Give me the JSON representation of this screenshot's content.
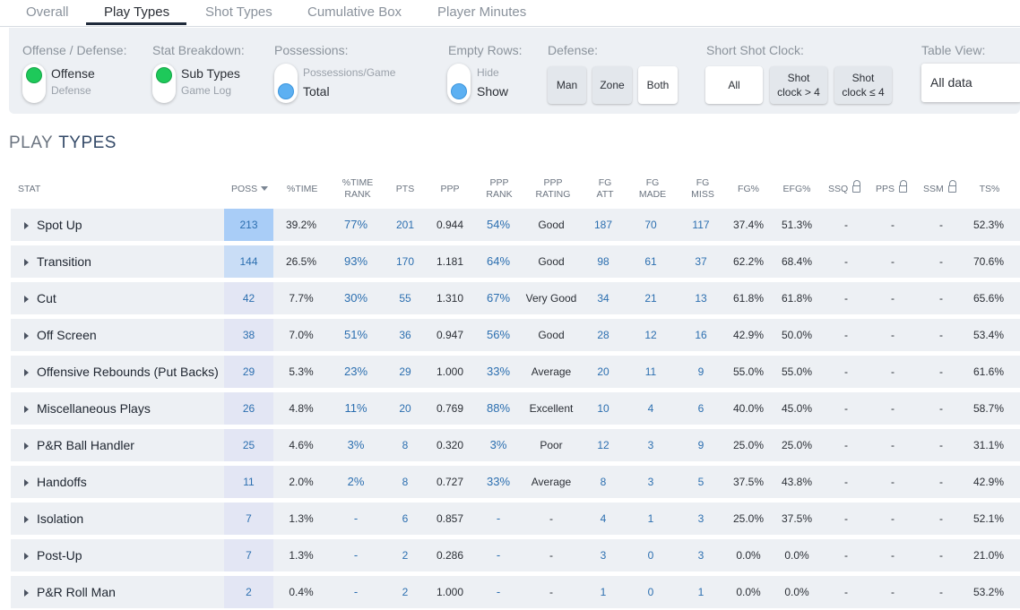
{
  "tabs": [
    "Overall",
    "Play Types",
    "Shot Types",
    "Cumulative Box",
    "Player Minutes"
  ],
  "active_tab": "Play Types",
  "controls": {
    "offense_defense": {
      "label": "Offense / Defense:",
      "selected": "Offense",
      "other": "Defense"
    },
    "stat_breakdown": {
      "label": "Stat Breakdown:",
      "selected": "Sub Types",
      "other": "Game Log"
    },
    "possessions": {
      "label": "Possessions:",
      "other": "Possessions/Game",
      "selected": "Total"
    },
    "empty_rows": {
      "label": "Empty Rows:",
      "other": "Hide",
      "selected": "Show"
    },
    "defense": {
      "label": "Defense:",
      "options": [
        "Man",
        "Zone",
        "Both"
      ],
      "selected": "Both"
    },
    "short_shot_clock": {
      "label": "Short Shot Clock:",
      "options": [
        "All",
        "Shot clock > 4",
        "Shot clock ≤ 4"
      ],
      "selected": "All"
    },
    "table_view": {
      "label": "Table View:",
      "value": "All data"
    }
  },
  "colors": {
    "green_knob": "#1ec95a",
    "blue_knob": "#5cb0f2",
    "link": "#2c6fb0",
    "poss_highlight_1": "#a9cdf7",
    "poss_highlight_2": "#c9ddf6",
    "poss_default": "#e3e6f4"
  },
  "heading": {
    "part1": "PLAY",
    "part2": "TYPES"
  },
  "table": {
    "columns": {
      "stat": "STAT",
      "poss": "POSS",
      "time": "%TIME",
      "time_rank_1": "%TIME",
      "time_rank_2": "RANK",
      "pts": "PTS",
      "ppp": "PPP",
      "ppp_rank_1": "PPP",
      "ppp_rank_2": "RANK",
      "ppp_rating_1": "PPP",
      "ppp_rating_2": "RATING",
      "fg_att_1": "FG",
      "fg_att_2": "ATT",
      "fg_made_1": "FG",
      "fg_made_2": "MADE",
      "fg_miss_1": "FG",
      "fg_miss_2": "MISS",
      "fg_pct": "FG%",
      "efg_pct": "EFG%",
      "ssq": "SSQ",
      "pps": "PPS",
      "ssm": "SSM",
      "ts_pct": "TS%"
    },
    "rows": [
      {
        "name": "Spot Up",
        "poss": "213",
        "time": "39.2%",
        "time_rank": "77%",
        "pts": "201",
        "ppp": "0.944",
        "ppp_rank": "54%",
        "rating": "Good",
        "fg_att": "187",
        "fg_made": "70",
        "fg_miss": "117",
        "fg_pct": "37.4%",
        "efg_pct": "51.3%",
        "ssq": "-",
        "pps": "-",
        "ssm": "-",
        "ts_pct": "52.3%"
      },
      {
        "name": "Transition",
        "poss": "144",
        "time": "26.5%",
        "time_rank": "93%",
        "pts": "170",
        "ppp": "1.181",
        "ppp_rank": "64%",
        "rating": "Good",
        "fg_att": "98",
        "fg_made": "61",
        "fg_miss": "37",
        "fg_pct": "62.2%",
        "efg_pct": "68.4%",
        "ssq": "-",
        "pps": "-",
        "ssm": "-",
        "ts_pct": "70.6%"
      },
      {
        "name": "Cut",
        "poss": "42",
        "time": "7.7%",
        "time_rank": "30%",
        "pts": "55",
        "ppp": "1.310",
        "ppp_rank": "67%",
        "rating": "Very Good",
        "fg_att": "34",
        "fg_made": "21",
        "fg_miss": "13",
        "fg_pct": "61.8%",
        "efg_pct": "61.8%",
        "ssq": "-",
        "pps": "-",
        "ssm": "-",
        "ts_pct": "65.6%"
      },
      {
        "name": "Off Screen",
        "poss": "38",
        "time": "7.0%",
        "time_rank": "51%",
        "pts": "36",
        "ppp": "0.947",
        "ppp_rank": "56%",
        "rating": "Good",
        "fg_att": "28",
        "fg_made": "12",
        "fg_miss": "16",
        "fg_pct": "42.9%",
        "efg_pct": "50.0%",
        "ssq": "-",
        "pps": "-",
        "ssm": "-",
        "ts_pct": "53.4%"
      },
      {
        "name": "Offensive Rebounds (Put Backs)",
        "poss": "29",
        "time": "5.3%",
        "time_rank": "23%",
        "pts": "29",
        "ppp": "1.000",
        "ppp_rank": "33%",
        "rating": "Average",
        "fg_att": "20",
        "fg_made": "11",
        "fg_miss": "9",
        "fg_pct": "55.0%",
        "efg_pct": "55.0%",
        "ssq": "-",
        "pps": "-",
        "ssm": "-",
        "ts_pct": "61.6%"
      },
      {
        "name": "Miscellaneous Plays",
        "poss": "26",
        "time": "4.8%",
        "time_rank": "11%",
        "pts": "20",
        "ppp": "0.769",
        "ppp_rank": "88%",
        "rating": "Excellent",
        "fg_att": "10",
        "fg_made": "4",
        "fg_miss": "6",
        "fg_pct": "40.0%",
        "efg_pct": "45.0%",
        "ssq": "-",
        "pps": "-",
        "ssm": "-",
        "ts_pct": "58.7%"
      },
      {
        "name": "P&R Ball Handler",
        "poss": "25",
        "time": "4.6%",
        "time_rank": "3%",
        "pts": "8",
        "ppp": "0.320",
        "ppp_rank": "3%",
        "rating": "Poor",
        "fg_att": "12",
        "fg_made": "3",
        "fg_miss": "9",
        "fg_pct": "25.0%",
        "efg_pct": "25.0%",
        "ssq": "-",
        "pps": "-",
        "ssm": "-",
        "ts_pct": "31.1%"
      },
      {
        "name": "Handoffs",
        "poss": "11",
        "time": "2.0%",
        "time_rank": "2%",
        "pts": "8",
        "ppp": "0.727",
        "ppp_rank": "33%",
        "rating": "Average",
        "fg_att": "8",
        "fg_made": "3",
        "fg_miss": "5",
        "fg_pct": "37.5%",
        "efg_pct": "43.8%",
        "ssq": "-",
        "pps": "-",
        "ssm": "-",
        "ts_pct": "42.9%"
      },
      {
        "name": "Isolation",
        "poss": "7",
        "time": "1.3%",
        "time_rank": "-",
        "pts": "6",
        "ppp": "0.857",
        "ppp_rank": "-",
        "rating": "-",
        "fg_att": "4",
        "fg_made": "1",
        "fg_miss": "3",
        "fg_pct": "25.0%",
        "efg_pct": "37.5%",
        "ssq": "-",
        "pps": "-",
        "ssm": "-",
        "ts_pct": "52.1%"
      },
      {
        "name": "Post-Up",
        "poss": "7",
        "time": "1.3%",
        "time_rank": "-",
        "pts": "2",
        "ppp": "0.286",
        "ppp_rank": "-",
        "rating": "-",
        "fg_att": "3",
        "fg_made": "0",
        "fg_miss": "3",
        "fg_pct": "0.0%",
        "efg_pct": "0.0%",
        "ssq": "-",
        "pps": "-",
        "ssm": "-",
        "ts_pct": "21.0%"
      },
      {
        "name": "P&R Roll Man",
        "poss": "2",
        "time": "0.4%",
        "time_rank": "-",
        "pts": "2",
        "ppp": "1.000",
        "ppp_rank": "-",
        "rating": "-",
        "fg_att": "1",
        "fg_made": "0",
        "fg_miss": "1",
        "fg_pct": "0.0%",
        "efg_pct": "0.0%",
        "ssq": "-",
        "pps": "-",
        "ssm": "-",
        "ts_pct": "53.2%"
      }
    ]
  }
}
